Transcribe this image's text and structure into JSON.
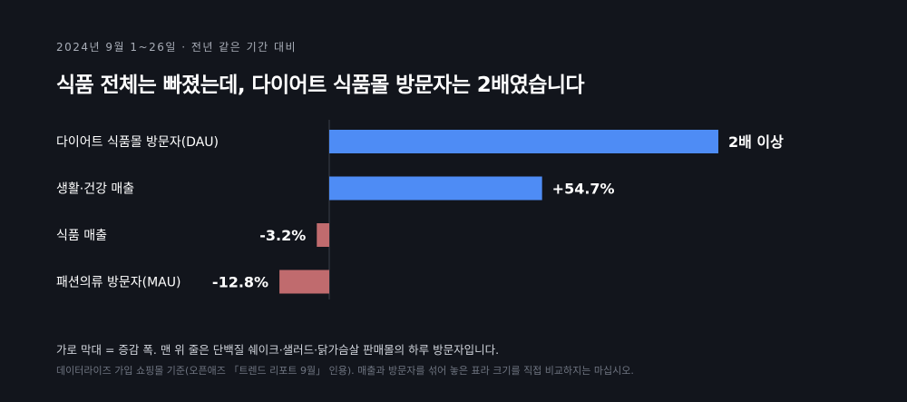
{
  "header": {
    "eyebrow": "2024년 9월 1~26일 · 전년 같은 기간 대비",
    "title": "식품 전체는 빠졌는데, 다이어트 식품몰 방문자는 2배였습니다"
  },
  "chart_data": {
    "type": "bar",
    "orientation": "horizontal",
    "categories": [
      "다이어트 식품몰 방문자(DAU)",
      "생활·건강 매출",
      "식품 매출",
      "패션의류 방문자(MAU)"
    ],
    "values": [
      100,
      54.7,
      -3.2,
      -12.8
    ],
    "value_labels": [
      "2배 이상",
      "+54.7%",
      "-3.2%",
      "-12.8%"
    ],
    "unit": "%",
    "xlim": [
      -20,
      100
    ],
    "colors": {
      "positive": "#4e8cf5",
      "negative": "#c06b6e",
      "axis": "#3a3f4a"
    },
    "grid": false,
    "legend": "none"
  },
  "footer": {
    "note": "가로 막대 = 증감 폭. 맨 위 줄은 단백질 쉐이크·샐러드·닭가슴살 판매몰의 하루 방문자입니다.",
    "source": "데이터라이즈 가입 쇼핑몰 기준(오픈애즈 「트렌드 리포트 9월」 인용). 매출과 방문자를 섞어 놓은 표라 크기를 직접 비교하지는 마십시오."
  }
}
